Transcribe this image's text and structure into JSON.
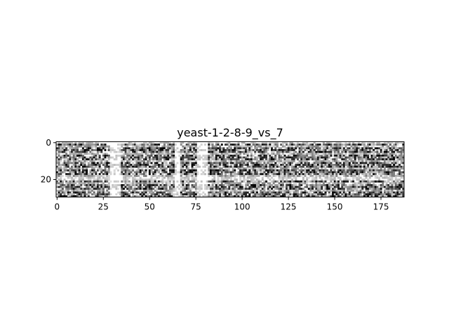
{
  "chart_data": {
    "type": "heatmap",
    "title": "yeast-1-2-8-9_vs_7",
    "xlabel": "",
    "ylabel": "",
    "n_rows": 30,
    "n_cols": 188,
    "xlim": [
      -0.5,
      187.5
    ],
    "ylim": [
      29.5,
      -0.5
    ],
    "x_ticks": [
      0,
      25,
      50,
      75,
      100,
      125,
      150,
      175
    ],
    "x_tick_labels": [
      "0",
      "25",
      "50",
      "75",
      "100",
      "125",
      "150",
      "175"
    ],
    "y_ticks": [
      0,
      20
    ],
    "y_tick_labels": [
      "0",
      "20"
    ],
    "colormap": "gray_r",
    "grid": false,
    "legend": "none",
    "seed": 1289
  },
  "colors": {
    "background": "#ffffff",
    "axis": "#000000",
    "cell_low": "#ffffff",
    "cell_high": "#000000"
  }
}
